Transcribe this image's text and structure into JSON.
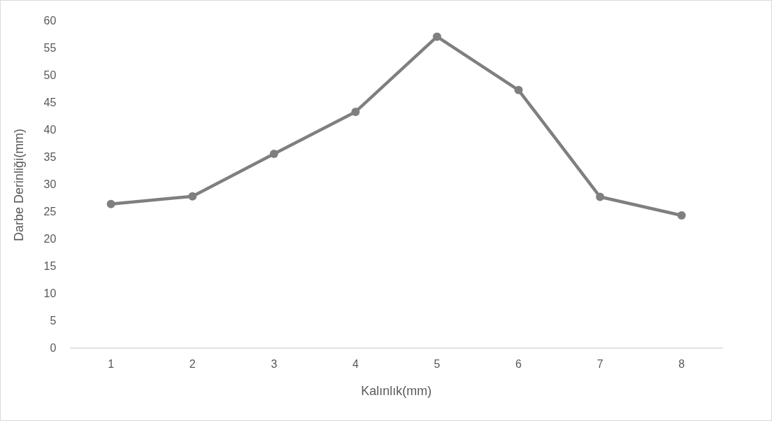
{
  "chart_data": {
    "type": "line",
    "xlabel": "Kalınlık(mm)",
    "ylabel": "Darbe Derinliği(mm)",
    "categories": [
      "1",
      "2",
      "3",
      "4",
      "5",
      "6",
      "7",
      "8"
    ],
    "series": [
      {
        "color": "#7f7f7f",
        "values": [
          26.5,
          27.9,
          35.7,
          43.4,
          57.2,
          47.4,
          27.8,
          24.4
        ]
      }
    ],
    "ylim": [
      0,
      60
    ],
    "yticks": [
      0,
      5,
      10,
      15,
      20,
      25,
      30,
      35,
      40,
      45,
      50,
      55,
      60
    ],
    "grid": false,
    "legend": false,
    "marker": "circle",
    "line_style": "solid"
  }
}
